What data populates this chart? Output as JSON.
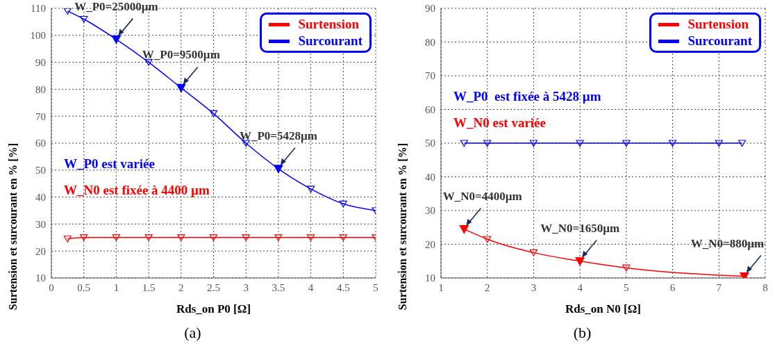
{
  "chart_data": [
    {
      "type": "line",
      "title": "(a)",
      "xlabel": "Rds_on P0 [Ω]",
      "ylabel": "Surtension et surcourant en % [%]",
      "x": [
        0.25,
        0.5,
        1,
        1.5,
        2,
        2.5,
        3,
        3.5,
        4,
        4.5,
        5
      ],
      "series": [
        {
          "name": "Surtension",
          "color": "#ff0000",
          "values": [
            24.5,
            25,
            25,
            25,
            25,
            25,
            25,
            25,
            25,
            25,
            25
          ]
        },
        {
          "name": "Surcourant",
          "color": "#0000ff",
          "values": [
            109,
            106,
            98.5,
            90,
            80.5,
            71,
            60,
            50.5,
            43,
            37.5,
            35
          ]
        }
      ],
      "xlim": [
        0,
        5
      ],
      "xticks": [
        0,
        0.5,
        1,
        1.5,
        2,
        2.5,
        3,
        3.5,
        4,
        4.5,
        5
      ],
      "ylim": [
        10,
        110
      ],
      "yticks": [
        10,
        20,
        30,
        40,
        50,
        60,
        70,
        80,
        90,
        100,
        110
      ],
      "grid": true,
      "legend": "top right",
      "marker": "triangle",
      "line_style": "solid",
      "annotations": [
        {
          "text": "W_P0=25000µm",
          "x": 1,
          "y": 98.5
        },
        {
          "text": "W_P0=9500µm",
          "x": 2,
          "y": 80.5
        },
        {
          "text": "W_P0=5428µm",
          "x": 3.5,
          "y": 50.5
        },
        "W_P0 est variée",
        "W_N0 est fixée à 4400 µm"
      ]
    },
    {
      "type": "line",
      "title": "(b)",
      "xlabel": "Rds_on N0 [Ω]",
      "ylabel": "Surtension et surcourant en % [%]",
      "series": [
        {
          "name": "Surtension",
          "color": "#ff0000",
          "x": [
            1.5,
            2,
            3,
            4,
            5,
            7.55
          ],
          "values": [
            24.5,
            21.5,
            17.5,
            15,
            13,
            10.5
          ]
        },
        {
          "name": "Surcourant",
          "color": "#0000ff",
          "x": [
            1.5,
            2,
            3,
            4,
            5,
            6,
            7,
            7.5
          ],
          "values": [
            50,
            50,
            50,
            50,
            50,
            50,
            50,
            50
          ]
        }
      ],
      "xlim": [
        1,
        8
      ],
      "xticks": [
        1,
        2,
        3,
        4,
        5,
        6,
        7,
        8
      ],
      "ylim": [
        10,
        90
      ],
      "yticks": [
        10,
        20,
        30,
        40,
        50,
        60,
        70,
        80,
        90
      ],
      "grid": true,
      "legend": "top right",
      "marker": "triangle",
      "line_style": "solid",
      "annotations": [
        {
          "text": "W_N0=4400µm",
          "x": 1.5,
          "y": 24.5
        },
        {
          "text": "W_N0=1650µm",
          "x": 4,
          "y": 15
        },
        {
          "text": "W_N0=880µm",
          "x": 7.55,
          "y": 10.5
        },
        "W_P0  est fixée à 5428 µm",
        "W_N0 est variée"
      ]
    }
  ]
}
